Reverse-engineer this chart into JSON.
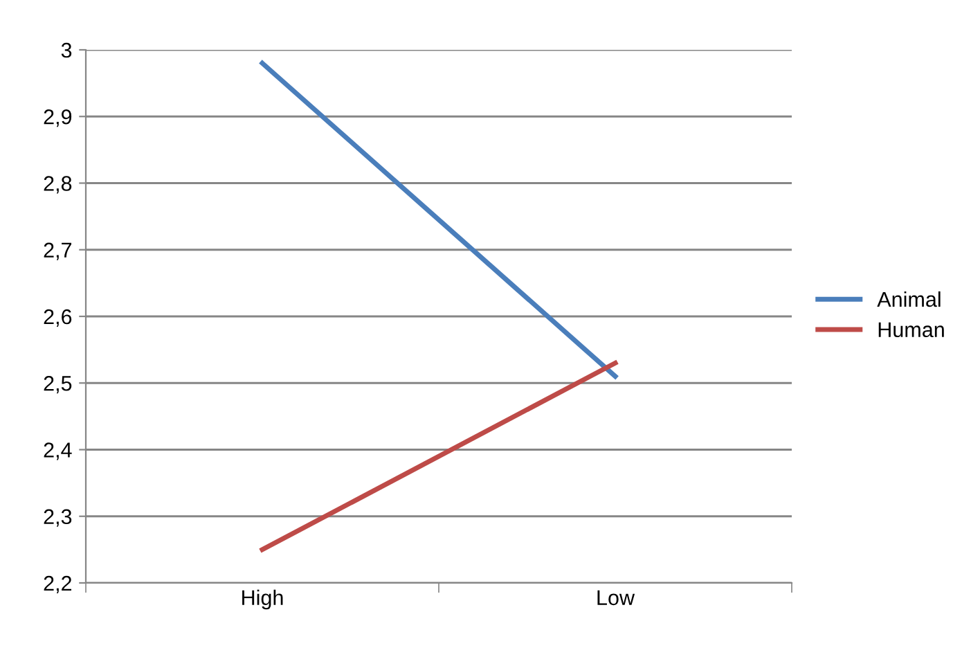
{
  "chart_data": {
    "type": "line",
    "categories": [
      "High",
      "Low"
    ],
    "series": [
      {
        "name": "Animal",
        "color": "#4a7ebb",
        "values": [
          2.98,
          2.51
        ]
      },
      {
        "name": "Human",
        "color": "#be4b48",
        "values": [
          2.25,
          2.53
        ]
      }
    ],
    "ylim": [
      2.2,
      3
    ],
    "yticks": [
      {
        "value": 2.2,
        "label": "2,2"
      },
      {
        "value": 2.3,
        "label": "2,3"
      },
      {
        "value": 2.4,
        "label": "2,4"
      },
      {
        "value": 2.5,
        "label": "2,5"
      },
      {
        "value": 2.6,
        "label": "2,6"
      },
      {
        "value": 2.7,
        "label": "2,7"
      },
      {
        "value": 2.8,
        "label": "2,8"
      },
      {
        "value": 2.9,
        "label": "2,9"
      },
      3
    ],
    "grid": "y",
    "legend": "right",
    "marker": "none",
    "line_style": "solid"
  }
}
